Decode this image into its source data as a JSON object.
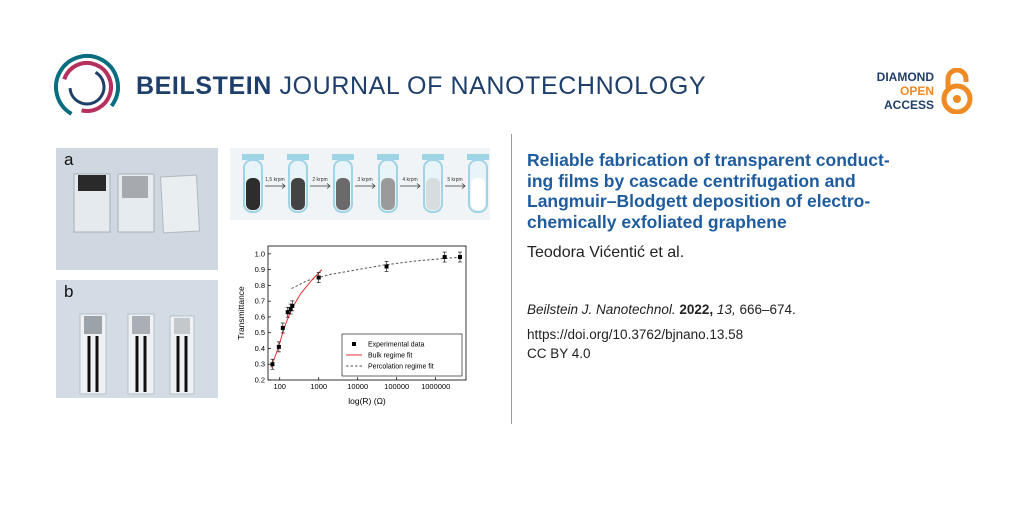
{
  "header": {
    "journal_bold": "BEILSTEIN",
    "journal_rest": " JOURNAL OF NANOTECHNOLOGY",
    "oa_line1": "DIAMOND",
    "oa_line2": "OPEN",
    "oa_line3": "ACCESS"
  },
  "colors": {
    "journal_blue": "#1f3f6b",
    "title_blue": "#1f5c9e",
    "logo_teal": "#0b6e7f",
    "logo_magenta": "#b5305a",
    "oa_orange": "#f08a24",
    "fit_red": "#e03030",
    "fit_dashed": "#555555"
  },
  "figure": {
    "panel_a_label": "a",
    "panel_b_label": "b",
    "vials": {
      "speeds": [
        "1,5 krpm",
        "2 krpm",
        "3 krpm",
        "4 krpm",
        "5 krpm"
      ]
    }
  },
  "chart_data": {
    "type": "scatter",
    "xlabel": "log(R) (Ω)",
    "ylabel": "Transmittance",
    "x_scale": "log",
    "xlim": [
      50,
      6000000
    ],
    "ylim": [
      0.2,
      1.05
    ],
    "x_ticks": [
      "100",
      "1000",
      "10000",
      "100000",
      "1000000"
    ],
    "y_ticks": [
      "0.2",
      "0.3",
      "0.4",
      "0.5",
      "0.6",
      "0.7",
      "0.8",
      "0.9",
      "1.0"
    ],
    "legend_position": "bottom-right",
    "series": [
      {
        "name": "Experimental data",
        "points": [
          [
            65,
            0.3
          ],
          [
            95,
            0.41
          ],
          [
            120,
            0.53
          ],
          [
            160,
            0.63
          ],
          [
            190,
            0.65
          ],
          [
            210,
            0.67
          ],
          [
            1000,
            0.85
          ],
          [
            55000,
            0.92
          ],
          [
            1700000,
            0.98
          ],
          [
            4200000,
            0.98
          ]
        ]
      },
      {
        "name": "Bulk regime fit",
        "points": [
          [
            60,
            0.28
          ],
          [
            90,
            0.4
          ],
          [
            130,
            0.53
          ],
          [
            200,
            0.65
          ],
          [
            350,
            0.75
          ],
          [
            700,
            0.84
          ],
          [
            1200,
            0.9
          ]
        ]
      },
      {
        "name": "Percolation regime fit",
        "points": [
          [
            200,
            0.78
          ],
          [
            500,
            0.83
          ],
          [
            2000,
            0.87
          ],
          [
            10000,
            0.9
          ],
          [
            50000,
            0.93
          ],
          [
            300000,
            0.955
          ],
          [
            1500000,
            0.97
          ],
          [
            5000000,
            0.98
          ]
        ]
      }
    ]
  },
  "article": {
    "title_lines": [
      "Reliable fabrication of transparent conduct-",
      "ing films by cascade centrifugation and",
      "Langmuir–Blodgett deposition of electro-",
      "chemically exfoliated graphene"
    ],
    "authors": "Teodora Vićentić et al.",
    "journal_abbrev": "Beilstein J. Nanotechnol.",
    "year": "2022,",
    "volume": "13,",
    "pages": "666–674.",
    "doi": "https://doi.org/10.3762/bjnano.13.58",
    "license": "CC BY 4.0"
  }
}
